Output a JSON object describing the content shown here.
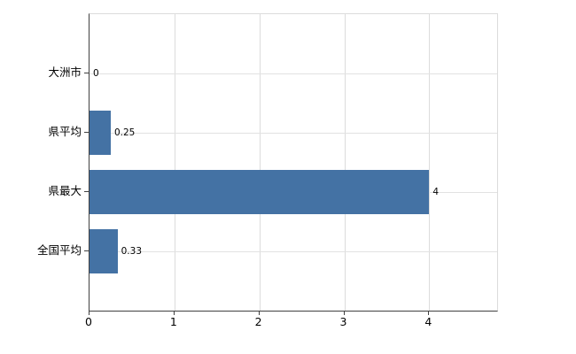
{
  "chart_data": {
    "type": "bar",
    "orientation": "horizontal",
    "title": "",
    "categories": [
      "大洲市",
      "県平均",
      "県最大",
      "全国平均"
    ],
    "values": [
      0,
      0.25,
      4,
      0.33
    ],
    "value_labels": [
      "0",
      "0.25",
      "4",
      "0.33"
    ],
    "x_ticks": [
      "0",
      "1",
      "2",
      "3",
      "4"
    ],
    "x_tick_values": [
      0,
      1,
      2,
      3,
      4
    ],
    "xlim": [
      0,
      4.8
    ],
    "grid": true,
    "legend": "none",
    "colors": {
      "bar": "#4472a4",
      "grid": "#dcdcdc",
      "axis": "#404040",
      "text": "#000000",
      "background": "#ffffff"
    }
  }
}
